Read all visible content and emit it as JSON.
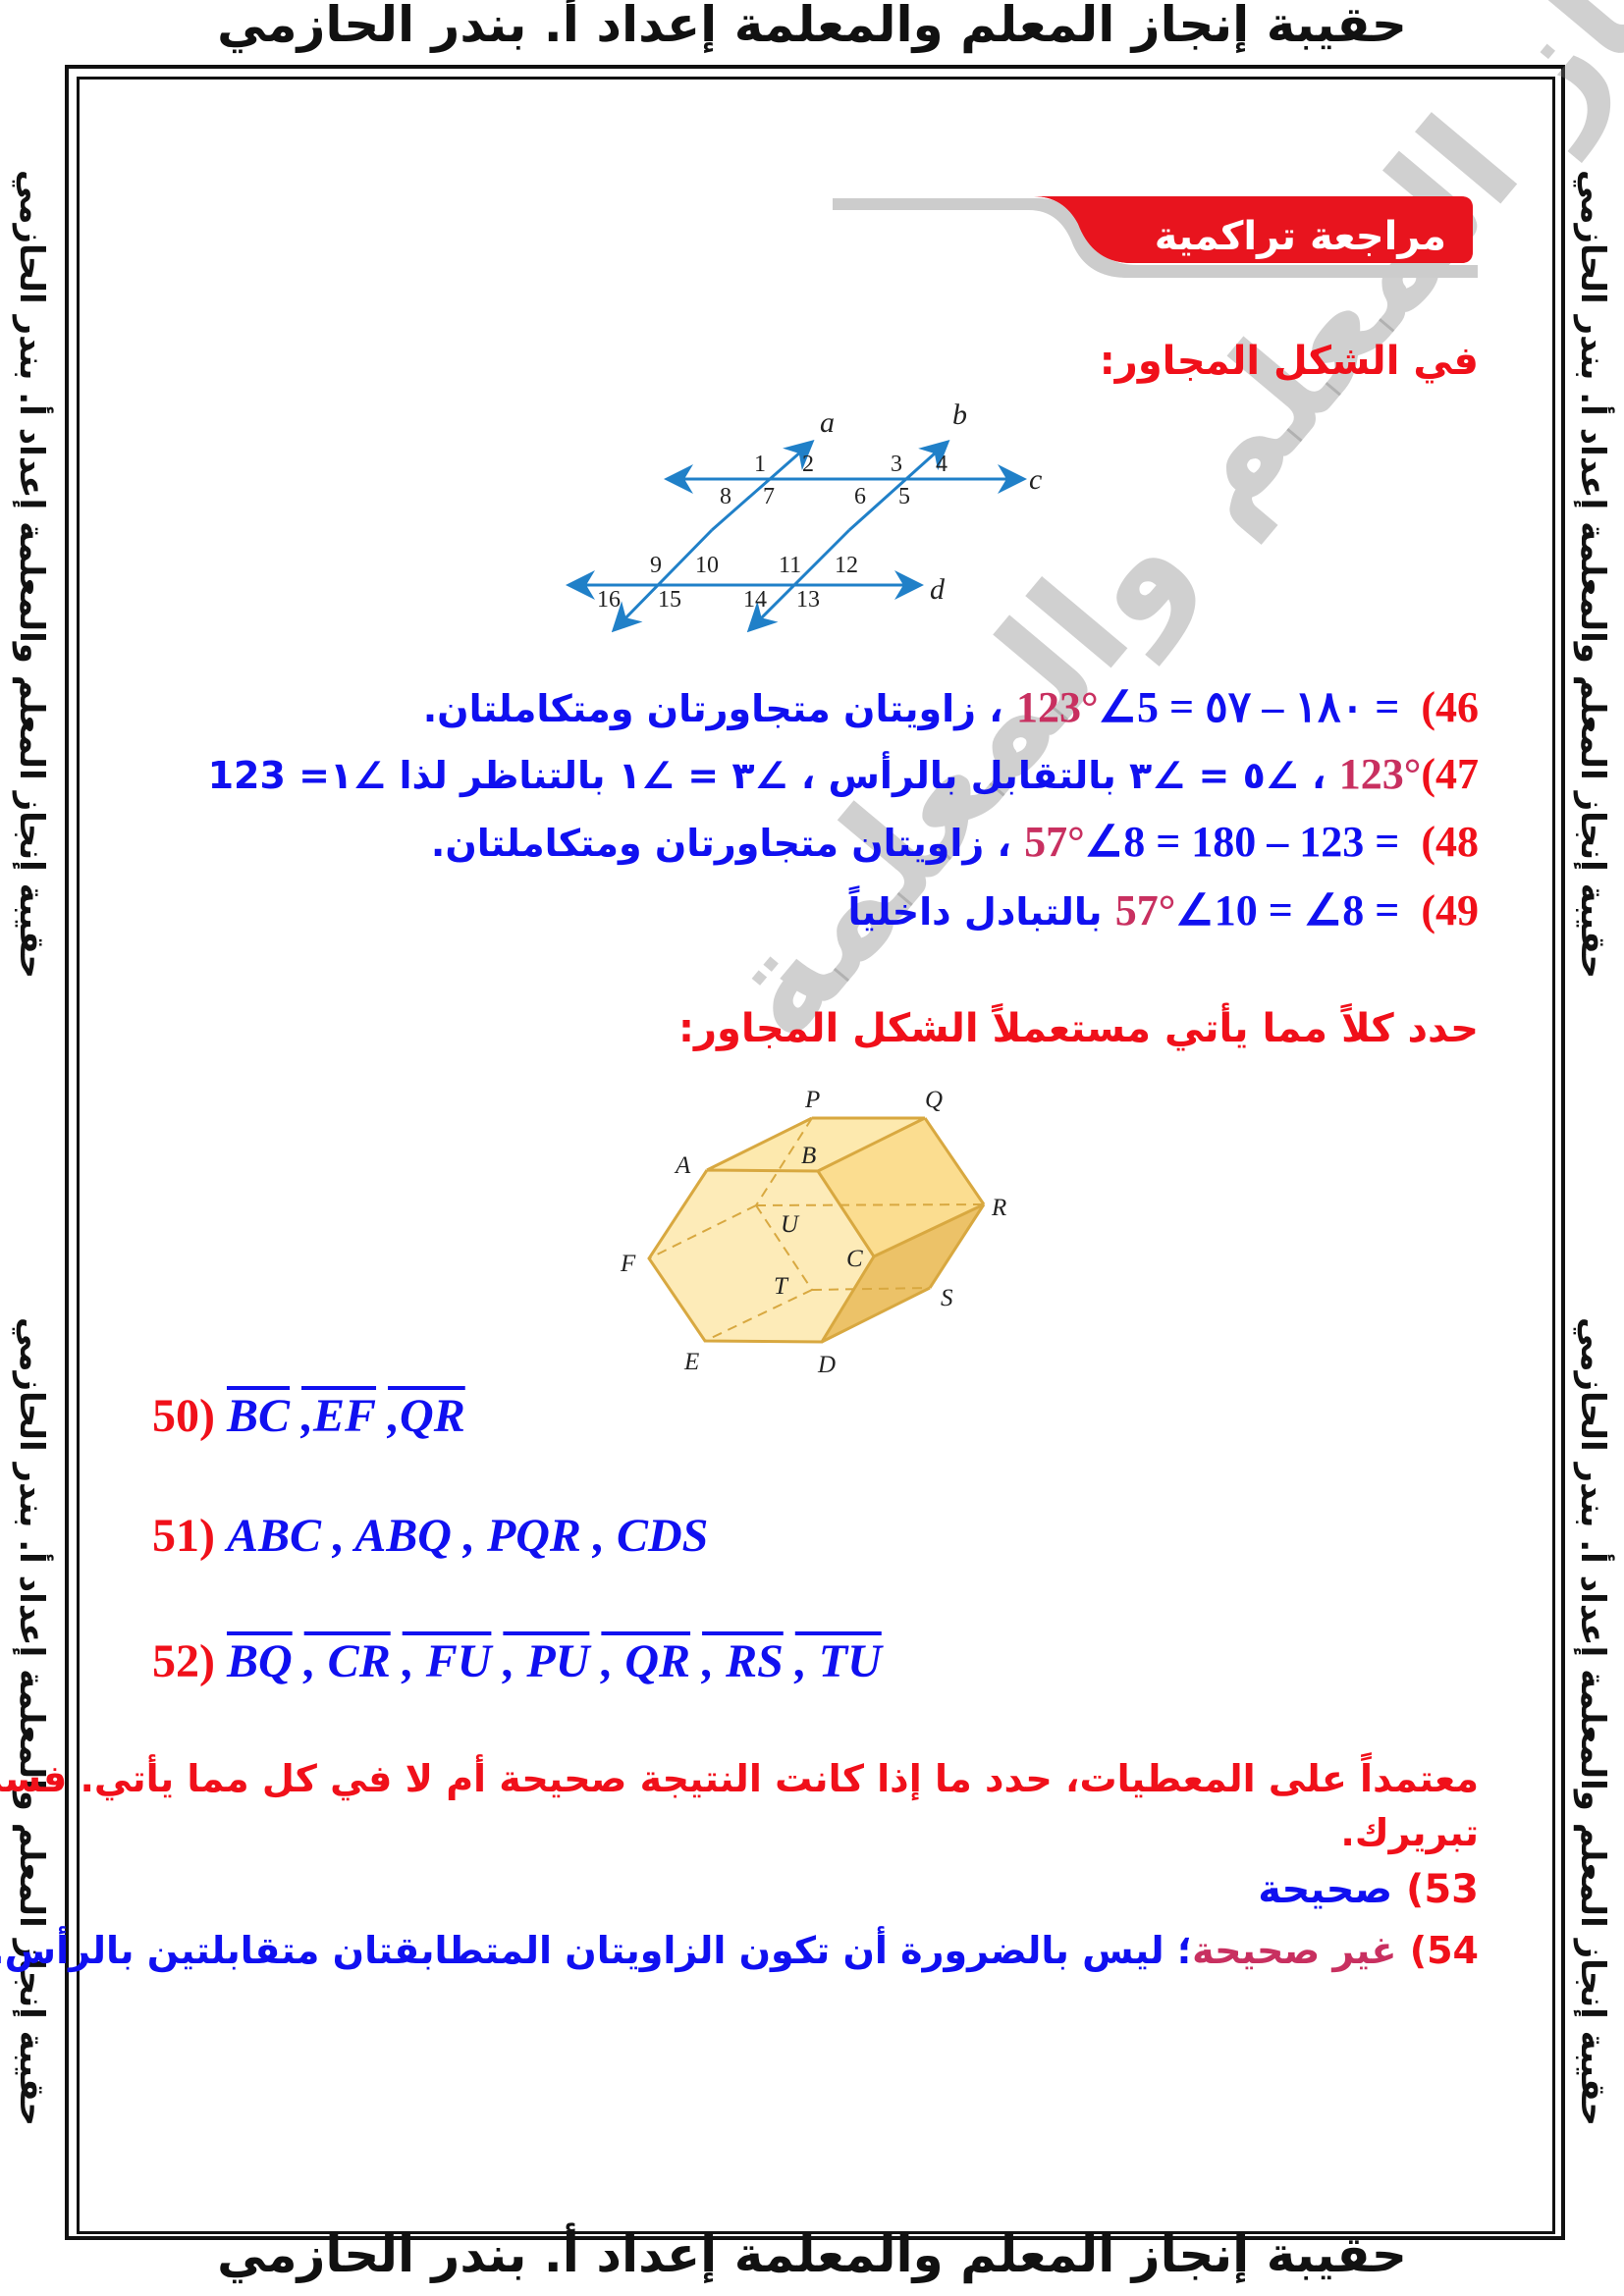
{
  "header_text": "حقيبة إنجاز المعلم والمعلمة إعداد أ. بندر الحازمي",
  "watermark_text": "حقيبة إنجاز المعلم والمعلمة",
  "section_title": "مراجعة تراكمية",
  "q1_intro": "في الشكل المجاور:",
  "figure1": {
    "lines": [
      "a",
      "b",
      "c",
      "d"
    ],
    "angles": [
      "1",
      "2",
      "3",
      "4",
      "5",
      "6",
      "7",
      "8",
      "9",
      "10",
      "11",
      "12",
      "13",
      "14",
      "15",
      "16"
    ]
  },
  "answers_46_49": [
    {
      "num": "46)",
      "math": "∠5 = ١٨٠ – ٥٧ = ",
      "value": "123°",
      "text": " ، زاويتان متجاورتان ومتكاملتان."
    },
    {
      "num": "47)",
      "math": "",
      "value": "123°",
      "text": " ، ∠٥ = ∠٣ بالتقابل بالرأس ، ∠٣ = ∠١ بالتناظر لذا  ∠١= 123"
    },
    {
      "num": "48)",
      "math": "∠8 = 180 – 123 = ",
      "value": "57°",
      "text": " ، زاويتان متجاورتان ومتكاملتان."
    },
    {
      "num": "49)",
      "math": "∠10 = ∠8 = ",
      "value": "57°",
      "text": "  بالتبادل داخلياً"
    }
  ],
  "q2_intro": "حدد كلاً مما يأتي مستعملاً الشكل المجاور:",
  "figure2": {
    "vertices": [
      "P",
      "Q",
      "A",
      "B",
      "R",
      "U",
      "F",
      "C",
      "T",
      "S",
      "E",
      "D"
    ]
  },
  "answer_50": {
    "num": "50)",
    "items": [
      "BC",
      ",EF",
      ",QR"
    ]
  },
  "answer_51": {
    "num": "51)",
    "text": "ABC , ABQ , PQR , CDS"
  },
  "answer_52": {
    "num": "52)",
    "items": [
      "BQ",
      ", CR",
      ", FU",
      ", PU",
      ", QR",
      ", RS",
      ", TU"
    ]
  },
  "q3_intro_1": "معتمداً على المعطيات، حدد ما إذا كانت النتيجة صحيحة أم لا في كل مما يأتي. فسر",
  "q3_intro_2": "تبريرك.",
  "answer_53": {
    "num": "53)",
    "text": "صحيحة"
  },
  "answer_54": {
    "num": "54)",
    "verdict": "غير صحيحة",
    "text": "؛ ليس بالضرورة أن تكون الزاويتان المتطابقتان متقابلتين بالرأس."
  },
  "colors": {
    "red": "#f0101a",
    "blue": "#1010f0",
    "pink": "#c83060",
    "figure_blue": "#2080c8",
    "prism_fill": "#fbe3a0",
    "prism_edge": "#d8a840"
  }
}
